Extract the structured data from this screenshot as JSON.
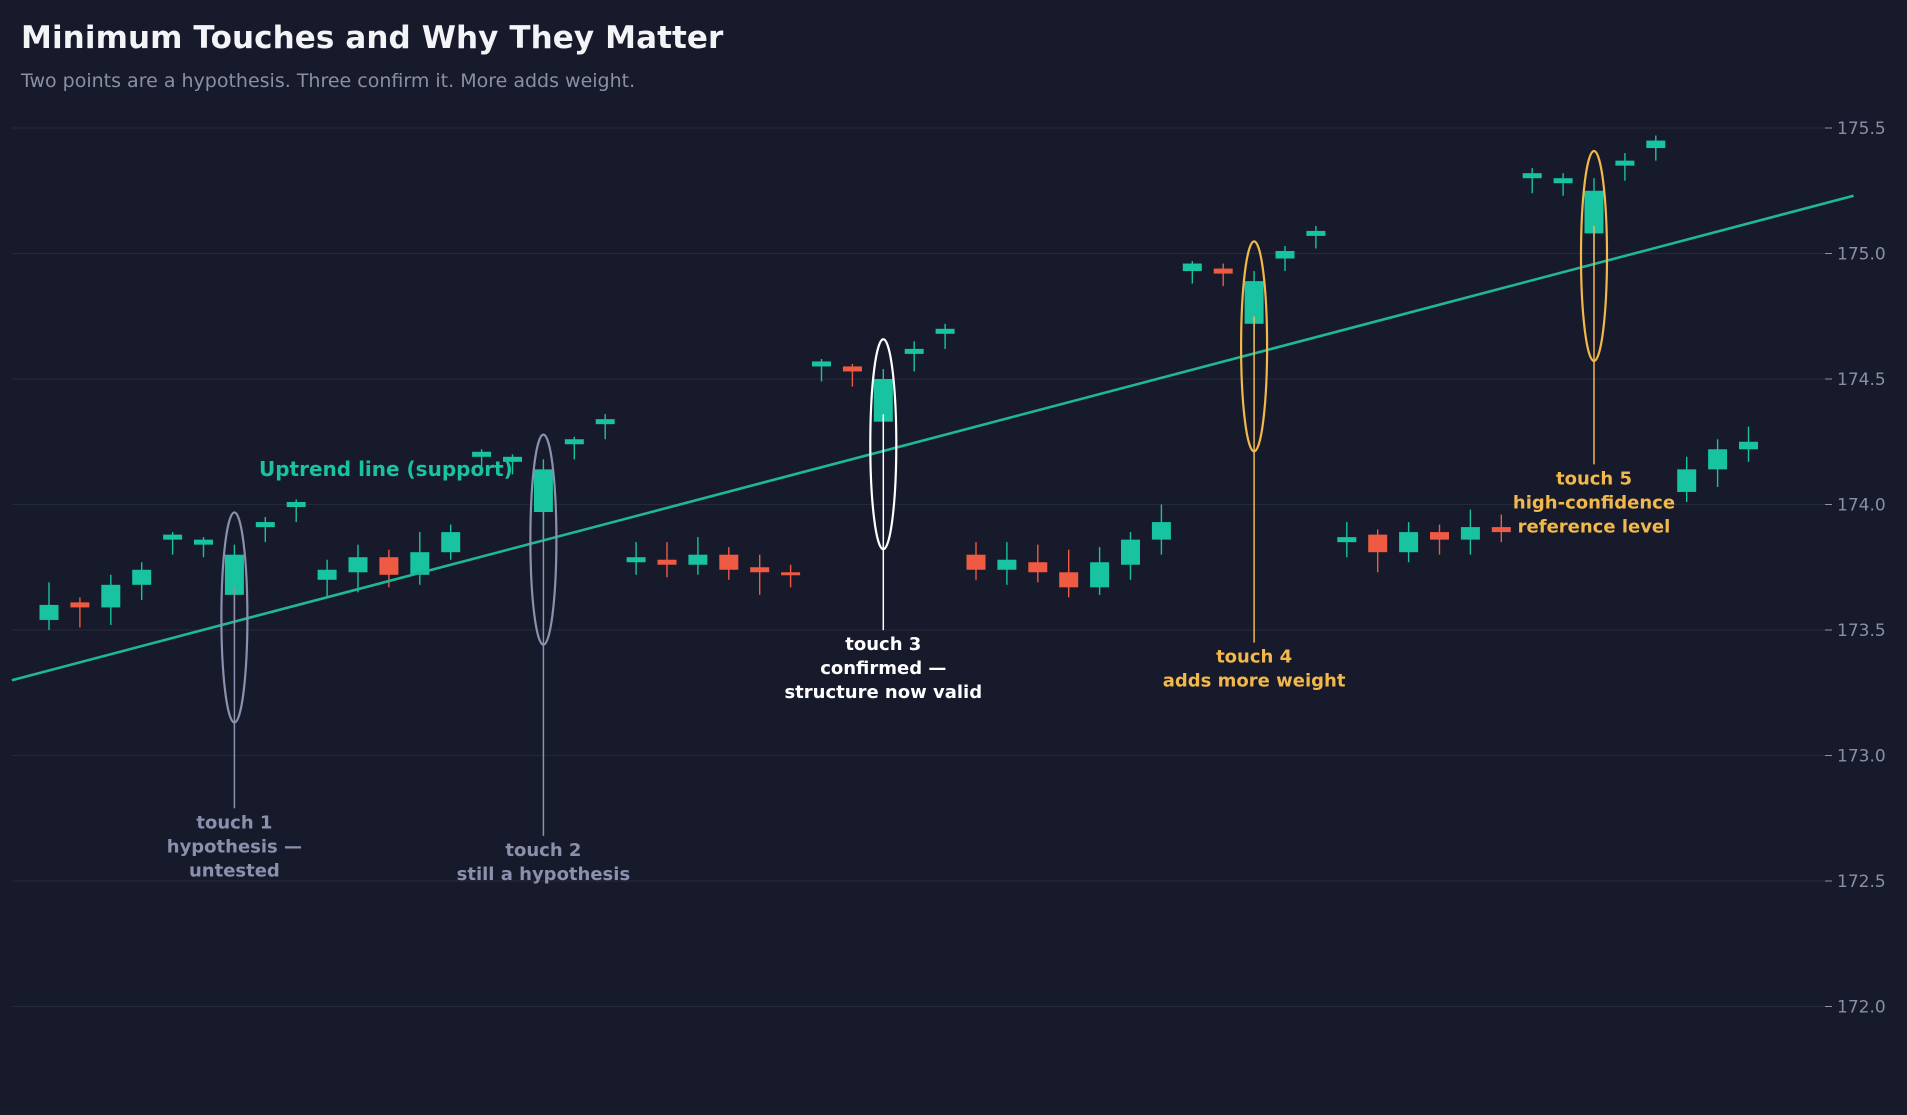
{
  "title": "Minimum Touches and Why They Matter",
  "subtitle": "Two points are a hypothesis. Three confirm it. More adds weight.",
  "colors": {
    "background": "#161a2a",
    "grid": "#252a3b",
    "up": "#17c3a0",
    "down": "#ef5a43",
    "trendline": "#1fb897",
    "muted": "#8b90ad",
    "white": "#ffffff",
    "gold": "#f2b84b"
  },
  "chart_data": {
    "type": "candlestick",
    "y_axis": {
      "position": "right",
      "range": [
        171.75,
        175.75
      ],
      "ticks": [
        "175.5",
        "175.0",
        "174.5",
        "174.0",
        "173.5",
        "173.0",
        "172.5",
        "172.0"
      ],
      "grid": true
    },
    "trendline": {
      "label": "Uptrend line (support)",
      "start_bar": -1.2,
      "start_price": 173.3,
      "end_bar": 58.4,
      "end_price": 175.23
    },
    "candles": [
      {
        "o": 173.54,
        "h": 173.69,
        "l": 173.5,
        "c": 173.6
      },
      {
        "o": 173.61,
        "h": 173.63,
        "l": 173.51,
        "c": 173.59
      },
      {
        "o": 173.59,
        "h": 173.72,
        "l": 173.52,
        "c": 173.68
      },
      {
        "o": 173.68,
        "h": 173.77,
        "l": 173.62,
        "c": 173.74
      },
      {
        "o": 173.86,
        "h": 173.89,
        "l": 173.8,
        "c": 173.88
      },
      {
        "o": 173.84,
        "h": 173.87,
        "l": 173.79,
        "c": 173.86
      },
      {
        "o": 173.64,
        "h": 173.84,
        "l": 173.52,
        "c": 173.8
      },
      {
        "o": 173.91,
        "h": 173.95,
        "l": 173.85,
        "c": 173.93
      },
      {
        "o": 173.99,
        "h": 174.02,
        "l": 173.93,
        "c": 174.01
      },
      {
        "o": 173.7,
        "h": 173.78,
        "l": 173.63,
        "c": 173.74
      },
      {
        "o": 173.73,
        "h": 173.84,
        "l": 173.65,
        "c": 173.79
      },
      {
        "o": 173.79,
        "h": 173.82,
        "l": 173.67,
        "c": 173.72
      },
      {
        "o": 173.72,
        "h": 173.89,
        "l": 173.68,
        "c": 173.81
      },
      {
        "o": 173.81,
        "h": 173.92,
        "l": 173.78,
        "c": 173.89
      },
      {
        "o": 174.19,
        "h": 174.22,
        "l": 174.15,
        "c": 174.21
      },
      {
        "o": 174.17,
        "h": 174.2,
        "l": 174.12,
        "c": 174.19
      },
      {
        "o": 173.97,
        "h": 174.18,
        "l": 173.85,
        "c": 174.14
      },
      {
        "o": 174.24,
        "h": 174.27,
        "l": 174.18,
        "c": 174.26
      },
      {
        "o": 174.32,
        "h": 174.36,
        "l": 174.26,
        "c": 174.34
      },
      {
        "o": 173.77,
        "h": 173.85,
        "l": 173.72,
        "c": 173.79
      },
      {
        "o": 173.78,
        "h": 173.85,
        "l": 173.71,
        "c": 173.76
      },
      {
        "o": 173.76,
        "h": 173.87,
        "l": 173.72,
        "c": 173.8
      },
      {
        "o": 173.8,
        "h": 173.83,
        "l": 173.7,
        "c": 173.74
      },
      {
        "o": 173.75,
        "h": 173.8,
        "l": 173.64,
        "c": 173.73
      },
      {
        "o": 173.73,
        "h": 173.76,
        "l": 173.67,
        "c": 173.72
      },
      {
        "o": 174.55,
        "h": 174.58,
        "l": 174.49,
        "c": 174.57
      },
      {
        "o": 174.55,
        "h": 174.56,
        "l": 174.47,
        "c": 174.53
      },
      {
        "o": 174.33,
        "h": 174.54,
        "l": 174.21,
        "c": 174.5
      },
      {
        "o": 174.6,
        "h": 174.65,
        "l": 174.53,
        "c": 174.62
      },
      {
        "o": 174.68,
        "h": 174.72,
        "l": 174.62,
        "c": 174.7
      },
      {
        "o": 173.8,
        "h": 173.85,
        "l": 173.7,
        "c": 173.74
      },
      {
        "o": 173.74,
        "h": 173.85,
        "l": 173.68,
        "c": 173.78
      },
      {
        "o": 173.77,
        "h": 173.84,
        "l": 173.69,
        "c": 173.73
      },
      {
        "o": 173.73,
        "h": 173.82,
        "l": 173.63,
        "c": 173.67
      },
      {
        "o": 173.67,
        "h": 173.83,
        "l": 173.64,
        "c": 173.77
      },
      {
        "o": 173.76,
        "h": 173.89,
        "l": 173.7,
        "c": 173.86
      },
      {
        "o": 173.86,
        "h": 174.0,
        "l": 173.8,
        "c": 173.93
      },
      {
        "o": 174.93,
        "h": 174.97,
        "l": 174.88,
        "c": 174.96
      },
      {
        "o": 174.94,
        "h": 174.96,
        "l": 174.87,
        "c": 174.92
      },
      {
        "o": 174.72,
        "h": 174.93,
        "l": 174.61,
        "c": 174.89
      },
      {
        "o": 174.98,
        "h": 175.03,
        "l": 174.93,
        "c": 175.01
      },
      {
        "o": 175.07,
        "h": 175.11,
        "l": 175.02,
        "c": 175.09
      },
      {
        "o": 173.85,
        "h": 173.93,
        "l": 173.79,
        "c": 173.87
      },
      {
        "o": 173.88,
        "h": 173.9,
        "l": 173.73,
        "c": 173.81
      },
      {
        "o": 173.81,
        "h": 173.93,
        "l": 173.77,
        "c": 173.89
      },
      {
        "o": 173.89,
        "h": 173.92,
        "l": 173.8,
        "c": 173.86
      },
      {
        "o": 173.86,
        "h": 173.98,
        "l": 173.8,
        "c": 173.91
      },
      {
        "o": 173.91,
        "h": 173.96,
        "l": 173.85,
        "c": 173.89
      },
      {
        "o": 175.3,
        "h": 175.34,
        "l": 175.24,
        "c": 175.32
      },
      {
        "o": 175.28,
        "h": 175.32,
        "l": 175.23,
        "c": 175.3
      },
      {
        "o": 175.08,
        "h": 175.3,
        "l": 174.97,
        "c": 175.25
      },
      {
        "o": 175.35,
        "h": 175.4,
        "l": 175.29,
        "c": 175.37
      },
      {
        "o": 175.42,
        "h": 175.47,
        "l": 175.37,
        "c": 175.45
      },
      {
        "o": 174.05,
        "h": 174.19,
        "l": 174.01,
        "c": 174.14
      },
      {
        "o": 174.14,
        "h": 174.26,
        "l": 174.07,
        "c": 174.22
      },
      {
        "o": 174.22,
        "h": 174.31,
        "l": 174.17,
        "c": 174.25
      }
    ],
    "annotations": [
      {
        "label_lines": [
          "touch 1",
          "hypothesis —",
          "untested"
        ],
        "bar": 6,
        "price": 173.55,
        "label_price": 172.71,
        "color_key": "muted"
      },
      {
        "label_lines": [
          "touch 2",
          "still a hypothesis"
        ],
        "bar": 16,
        "price": 173.86,
        "label_price": 172.6,
        "color_key": "muted"
      },
      {
        "label_lines": [
          "touch 3",
          "confirmed —",
          "structure now valid"
        ],
        "bar": 27,
        "price": 174.24,
        "label_price": 173.42,
        "color_key": "white"
      },
      {
        "label_lines": [
          "touch 4",
          "adds more weight"
        ],
        "bar": 39,
        "price": 174.63,
        "label_price": 173.37,
        "color_key": "gold"
      },
      {
        "label_lines": [
          "touch 5",
          "high-confidence",
          "reference level"
        ],
        "bar": 50,
        "price": 174.99,
        "label_price": 174.08,
        "color_key": "gold"
      }
    ]
  }
}
